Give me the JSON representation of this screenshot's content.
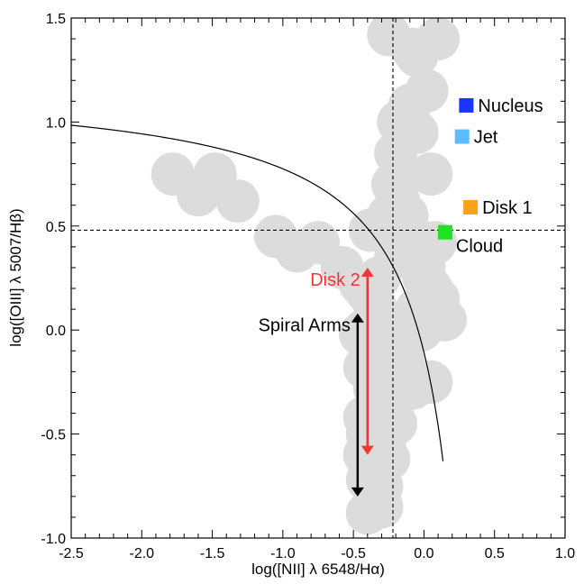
{
  "chart_data": {
    "type": "scatter",
    "xlabel": "log([NII] λ 6548/Hα)",
    "ylabel": "log([OIII] λ 5007/Hβ)",
    "xlim": [
      -2.5,
      1.0
    ],
    "ylim": [
      -1.0,
      1.5
    ],
    "xticks": [
      "-2.5",
      "-2.0",
      "-1.5",
      "-1.0",
      "-0.5",
      "0.0",
      "0.5",
      "1.0"
    ],
    "yticks": [
      "-1.0",
      "-0.5",
      "0.0",
      "0.5",
      "1.0",
      "1.5"
    ],
    "grid": false,
    "reference_lines": {
      "x": -0.22,
      "y": 0.48
    },
    "demarcation_curve": {
      "form": "0.61/(x-0.47)+1.19"
    },
    "region_points": {
      "color": "#dcdcdc",
      "x": [
        -1.78,
        -1.6,
        -1.48,
        -1.32,
        -1.05,
        -0.9,
        -0.75,
        -0.58,
        -0.45,
        -0.38,
        -0.25,
        -0.15,
        -0.08,
        0.0,
        -0.22,
        -0.2,
        -0.18,
        -0.05,
        -0.1,
        0.02,
        -0.05,
        -0.25,
        -0.08,
        0.1,
        0.05,
        -0.18,
        -0.4,
        -0.35,
        -0.3,
        -0.45,
        -0.42,
        -0.35,
        -0.3,
        -0.42,
        -0.35,
        -0.28,
        -0.42,
        -0.3,
        -0.4,
        -0.32,
        -0.4,
        -0.3,
        -0.18,
        -0.08,
        0.05,
        0.1,
        -0.02,
        0.15,
        0.0,
        -0.32,
        -0.2,
        -0.12,
        0.0,
        0.08,
        -0.38,
        -0.28,
        -0.42,
        -0.35,
        -0.25,
        -0.15,
        -0.05,
        0.05,
        -0.25,
        -0.4,
        -0.3,
        -0.2
      ],
      "y": [
        0.75,
        0.65,
        0.75,
        0.62,
        0.45,
        0.38,
        0.42,
        0.3,
        0.22,
        0.48,
        0.55,
        0.45,
        0.38,
        0.42,
        0.7,
        0.85,
        1.0,
        0.95,
        1.08,
        1.15,
        1.32,
        1.42,
        1.35,
        1.4,
        0.75,
        0.62,
        0.18,
        0.12,
        0.05,
        -0.02,
        -0.18,
        -0.28,
        -0.35,
        -0.42,
        -0.5,
        -0.55,
        -0.6,
        -0.65,
        -0.72,
        -0.8,
        -0.88,
        -0.85,
        -0.3,
        -0.28,
        -0.25,
        0.15,
        0.0,
        0.05,
        0.3,
        0.25,
        0.35,
        0.55,
        0.25,
        0.42,
        -0.12,
        -0.05,
        0.0,
        -0.25,
        -0.2,
        -0.15,
        0.1,
        0.2,
        -0.62,
        -0.5,
        -0.75,
        -0.45
      ]
    },
    "series": [
      {
        "name": "Nucleus",
        "x": [
          0.3
        ],
        "y": [
          1.08
        ],
        "color": "#1c34ff"
      },
      {
        "name": "Jet",
        "x": [
          0.27
        ],
        "y": [
          0.93
        ],
        "color": "#5cbcff"
      },
      {
        "name": "Disk 1",
        "x": [
          0.33
        ],
        "y": [
          0.59
        ],
        "color": "#ffa11a"
      },
      {
        "name": "Cloud",
        "x": [
          0.15
        ],
        "y": [
          0.47
        ],
        "color": "#22e022"
      }
    ],
    "ranges": [
      {
        "name": "Disk 2",
        "x": -0.4,
        "y_from": 0.3,
        "y_to": -0.6,
        "color": "#f03535"
      },
      {
        "name": "Spiral Arms",
        "x": -0.47,
        "y_from": 0.08,
        "y_to": -0.8,
        "color": "#000000"
      }
    ]
  }
}
